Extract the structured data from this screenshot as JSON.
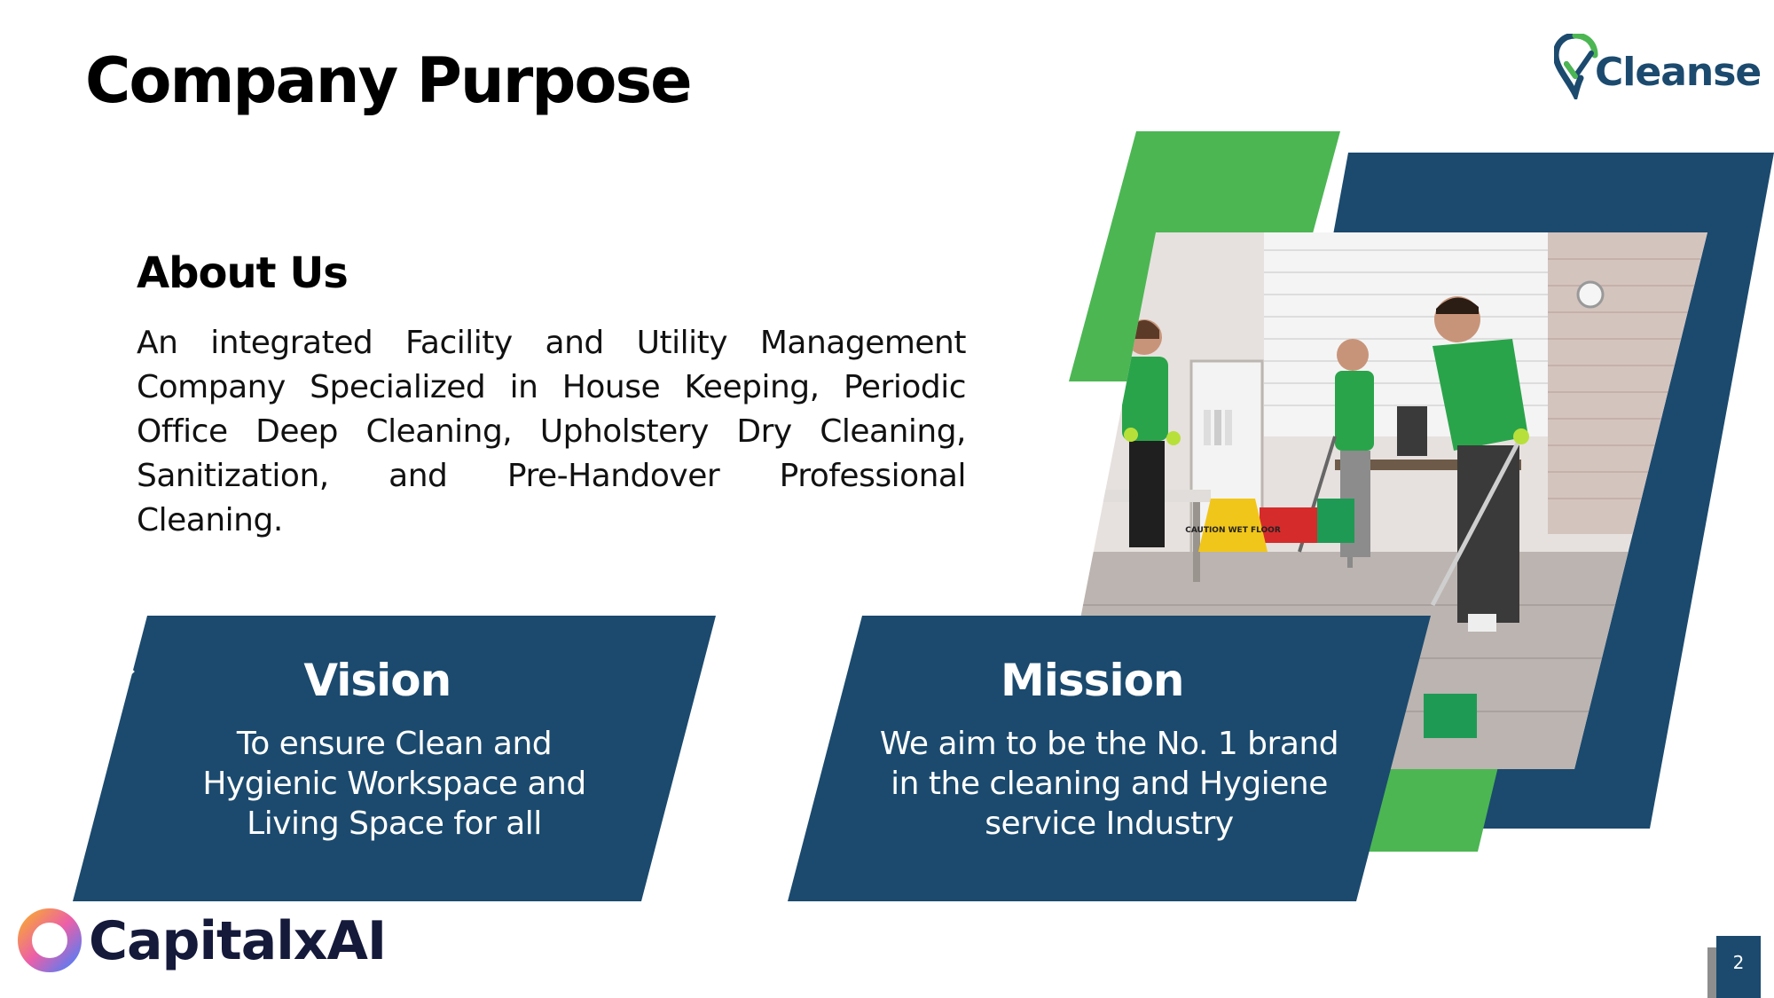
{
  "header": {
    "title": "Company Purpose",
    "logo_text": "Cleanse"
  },
  "about": {
    "heading": "About Us",
    "text": "An integrated Facility and Utility Management Company Specialized in House Keeping, Periodic Office Deep Cleaning, Upholstery Dry Cleaning, Sanitization, and Pre-Handover Professional Cleaning."
  },
  "vision": {
    "heading": "Vision",
    "icon": "eye-icon",
    "lines": [
      "To ensure Clean and",
      "Hygienic Workspace and",
      "Living Space for all"
    ]
  },
  "mission": {
    "heading": "Mission",
    "icon": "target-icon",
    "lines": [
      "We aim to be the No. 1 brand",
      "in the cleaning and Hygiene",
      "service Industry"
    ]
  },
  "photo": {
    "caution_sign": "CAUTION WET FLOOR"
  },
  "footer": {
    "brand": "CapitalxAI",
    "page_number": "2"
  },
  "colors": {
    "navy": "#1b4a6e",
    "green": "#4cb653"
  }
}
